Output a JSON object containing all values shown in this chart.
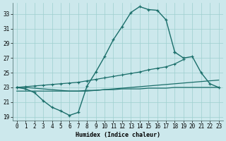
{
  "bg_color": "#cce8ec",
  "grid_color": "#9ecfcf",
  "line_color": "#1a6e6a",
  "xlabel": "Humidex (Indice chaleur)",
  "xlim": [
    -0.5,
    23.5
  ],
  "ylim": [
    18.5,
    34.5
  ],
  "xticks": [
    0,
    1,
    2,
    3,
    4,
    5,
    6,
    7,
    8,
    9,
    10,
    11,
    12,
    13,
    14,
    15,
    16,
    17,
    18,
    19,
    20,
    21,
    22,
    23
  ],
  "yticks": [
    19,
    21,
    23,
    25,
    27,
    29,
    31,
    33
  ],
  "curve_main_x": [
    0,
    1,
    2,
    3,
    4,
    5,
    6,
    7,
    8,
    9,
    10,
    11,
    12,
    13,
    14,
    15,
    16,
    17,
    18
  ],
  "curve_main_y": [
    23.0,
    22.8,
    22.3,
    21.2,
    20.3,
    19.8,
    19.2,
    19.6,
    23.2,
    25.1,
    27.2,
    29.5,
    31.3,
    33.2,
    34.0,
    33.6,
    33.5,
    32.2,
    27.8
  ],
  "curve_right_x": [
    18,
    19,
    20,
    21,
    22,
    23
  ],
  "curve_right_y": [
    27.8,
    27.0,
    27.2,
    25.0,
    23.5,
    23.0
  ],
  "line_upper_x": [
    0,
    1,
    2,
    3,
    4,
    5,
    6,
    7,
    8,
    9,
    10,
    11,
    12,
    13,
    14,
    15,
    16,
    17,
    18,
    19
  ],
  "line_upper_y": [
    23.0,
    23.1,
    23.2,
    23.3,
    23.4,
    23.5,
    23.6,
    23.7,
    23.9,
    24.1,
    24.3,
    24.5,
    24.7,
    24.9,
    25.1,
    25.4,
    25.6,
    25.8,
    26.2,
    26.8
  ],
  "line_mid_x": [
    0,
    1,
    2,
    3,
    4,
    5,
    6,
    7,
    8,
    9,
    10,
    11,
    12,
    13,
    14,
    15,
    16,
    17,
    18,
    19,
    20,
    21,
    22,
    23
  ],
  "line_mid_y": [
    23.0,
    23.0,
    22.9,
    22.8,
    22.7,
    22.6,
    22.5,
    22.5,
    22.5,
    22.6,
    22.7,
    22.8,
    22.9,
    23.0,
    23.1,
    23.2,
    23.3,
    23.4,
    23.5,
    23.6,
    23.7,
    23.8,
    23.9,
    24.0
  ],
  "line_lower_x": [
    0,
    1,
    2,
    3,
    4,
    5,
    6,
    7,
    8,
    9,
    10,
    11,
    12,
    13,
    14,
    15,
    16,
    17,
    18,
    19,
    20,
    21,
    22,
    23
  ],
  "line_lower_y": [
    22.5,
    22.5,
    22.5,
    22.5,
    22.5,
    22.5,
    22.5,
    22.5,
    22.6,
    22.6,
    22.7,
    22.7,
    22.8,
    22.8,
    22.8,
    22.9,
    22.9,
    22.9,
    23.0,
    23.0,
    23.0,
    23.0,
    23.0,
    23.0
  ]
}
